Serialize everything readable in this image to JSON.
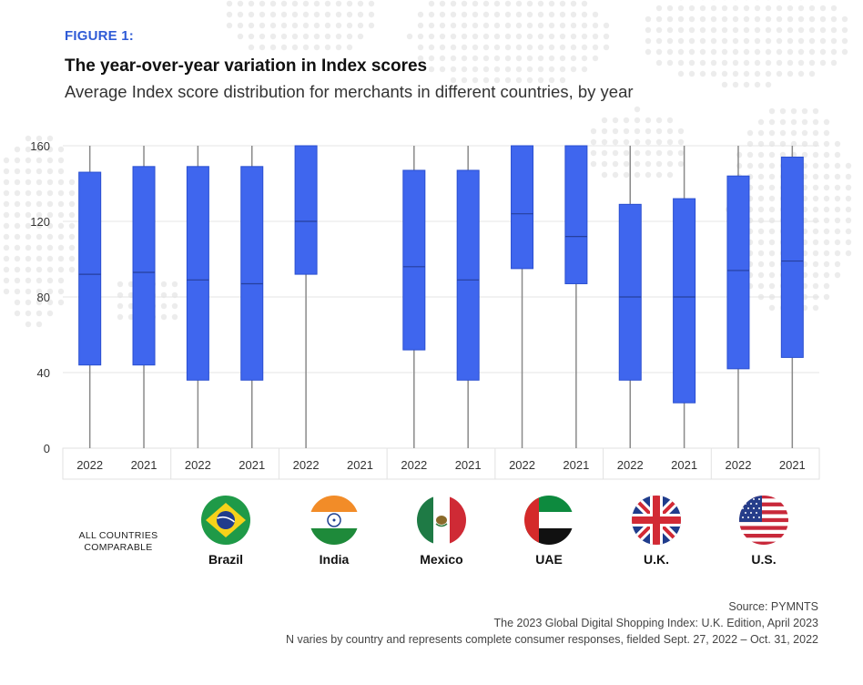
{
  "figure_label": "FIGURE 1:",
  "title": "The year-over-year variation in Index scores",
  "subtitle": "Average Index score distribution for merchants in different countries, by year",
  "all_countries_label": "ALL COUNTRIES COMPARABLE",
  "countries": [
    {
      "name": "Brazil",
      "flag_icon": "brazil-flag-icon"
    },
    {
      "name": "India",
      "flag_icon": "india-flag-icon"
    },
    {
      "name": "Mexico",
      "flag_icon": "mexico-flag-icon"
    },
    {
      "name": "UAE",
      "flag_icon": "uae-flag-icon"
    },
    {
      "name": "U.K.",
      "flag_icon": "uk-flag-icon"
    },
    {
      "name": "U.S.",
      "flag_icon": "us-flag-icon"
    }
  ],
  "footer": {
    "source": "Source: PYMNTS",
    "report": "The 2023 Global Digital Shopping Index: U.K. Edition, April 2023",
    "note": "N varies by country and represents complete consumer responses, fielded Sept. 27, 2022 – Oct. 31, 2022"
  },
  "colors": {
    "box_fill": "#3f66ee",
    "box_stroke": "#2a4fd0",
    "whisker": "#8a8a8a",
    "label_accent": "#2f5bd6"
  },
  "chart_data": {
    "type": "box",
    "ylim": [
      0,
      160
    ],
    "yticks": [
      0,
      40,
      80,
      120,
      160
    ],
    "grid": true,
    "categories": [
      "2022",
      "2021",
      "2022",
      "2021",
      "2022",
      "2021",
      "2022",
      "2021",
      "2022",
      "2021",
      "2022",
      "2021",
      "2022",
      "2021"
    ],
    "groups": [
      "ALL COUNTRIES COMPARABLE",
      "Brazil",
      "India",
      "Mexico",
      "UAE",
      "U.K.",
      "U.S."
    ],
    "boxes": [
      {
        "group": "ALL COUNTRIES COMPARABLE",
        "year": "2022",
        "min": 0,
        "q1": 44,
        "median": 92,
        "q3": 146,
        "max": 160
      },
      {
        "group": "ALL COUNTRIES COMPARABLE",
        "year": "2021",
        "min": 0,
        "q1": 44,
        "median": 93,
        "q3": 149,
        "max": 160
      },
      {
        "group": "Brazil",
        "year": "2022",
        "min": 0,
        "q1": 36,
        "median": 89,
        "q3": 149,
        "max": 160
      },
      {
        "group": "Brazil",
        "year": "2021",
        "min": 0,
        "q1": 36,
        "median": 87,
        "q3": 149,
        "max": 160
      },
      {
        "group": "India",
        "year": "2022",
        "min": 0,
        "q1": 92,
        "median": 120,
        "q3": 160,
        "max": 160
      },
      {
        "group": "India",
        "year": "2021",
        "min": null,
        "q1": null,
        "median": null,
        "q3": null,
        "max": null
      },
      {
        "group": "Mexico",
        "year": "2022",
        "min": 0,
        "q1": 52,
        "median": 96,
        "q3": 147,
        "max": 160
      },
      {
        "group": "Mexico",
        "year": "2021",
        "min": 0,
        "q1": 36,
        "median": 89,
        "q3": 147,
        "max": 160
      },
      {
        "group": "UAE",
        "year": "2022",
        "min": 0,
        "q1": 95,
        "median": 124,
        "q3": 160,
        "max": 160
      },
      {
        "group": "UAE",
        "year": "2021",
        "min": 0,
        "q1": 87,
        "median": 112,
        "q3": 160,
        "max": 160
      },
      {
        "group": "U.K.",
        "year": "2022",
        "min": 0,
        "q1": 36,
        "median": 80,
        "q3": 129,
        "max": 160
      },
      {
        "group": "U.K.",
        "year": "2021",
        "min": 0,
        "q1": 24,
        "median": 80,
        "q3": 132,
        "max": 160
      },
      {
        "group": "U.S.",
        "year": "2022",
        "min": 0,
        "q1": 42,
        "median": 94,
        "q3": 144,
        "max": 160
      },
      {
        "group": "U.S.",
        "year": "2021",
        "min": 0,
        "q1": 48,
        "median": 99,
        "q3": 154,
        "max": 160
      }
    ]
  }
}
